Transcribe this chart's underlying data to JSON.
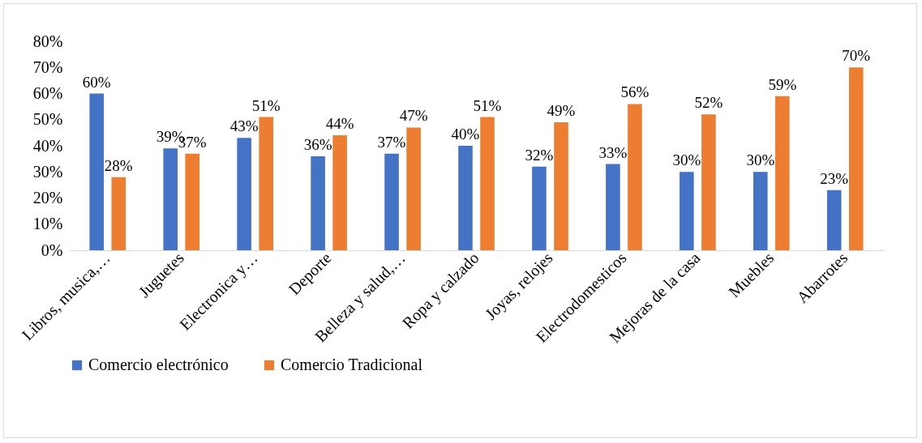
{
  "chart_data": {
    "type": "bar",
    "categories": [
      "Libros, musica,…",
      "Juguetes",
      "Electronica y…",
      "Deporte",
      "Belleza y salud,…",
      "Ropa y calzado",
      "Joyas, relojes",
      "Electrodomesticos",
      "Mejoras de la casa",
      "Muebles",
      "Abarrotes"
    ],
    "series": [
      {
        "name": "Comercio electrónico",
        "color": "#4472c4",
        "values": [
          60,
          39,
          43,
          36,
          37,
          40,
          32,
          33,
          30,
          30,
          23
        ],
        "value_labels": [
          "60%",
          "39%",
          "43%",
          "36%",
          "37%",
          "40%",
          "32%",
          "33%",
          "30%",
          "30%",
          "23%"
        ]
      },
      {
        "name": "Comercio Tradicional",
        "color": "#ed7d31",
        "values": [
          28,
          37,
          51,
          44,
          47,
          51,
          49,
          56,
          52,
          59,
          70
        ],
        "value_labels": [
          "28%",
          "37%",
          "51%",
          "44%",
          "47%",
          "51%",
          "49%",
          "56%",
          "52%",
          "59%",
          "70%"
        ]
      }
    ],
    "ylim": [
      0,
      80
    ],
    "yticks": [
      {
        "value": 0,
        "label": "0%"
      },
      {
        "value": 10,
        "label": "10%"
      },
      {
        "value": 20,
        "label": "20%"
      },
      {
        "value": 30,
        "label": "30%"
      },
      {
        "value": 40,
        "label": "40%"
      },
      {
        "value": 50,
        "label": "50%"
      },
      {
        "value": 60,
        "label": "60%"
      },
      {
        "value": 70,
        "label": "70%"
      },
      {
        "value": 80,
        "label": "80%"
      }
    ],
    "grid": false,
    "legend": "bottom"
  }
}
